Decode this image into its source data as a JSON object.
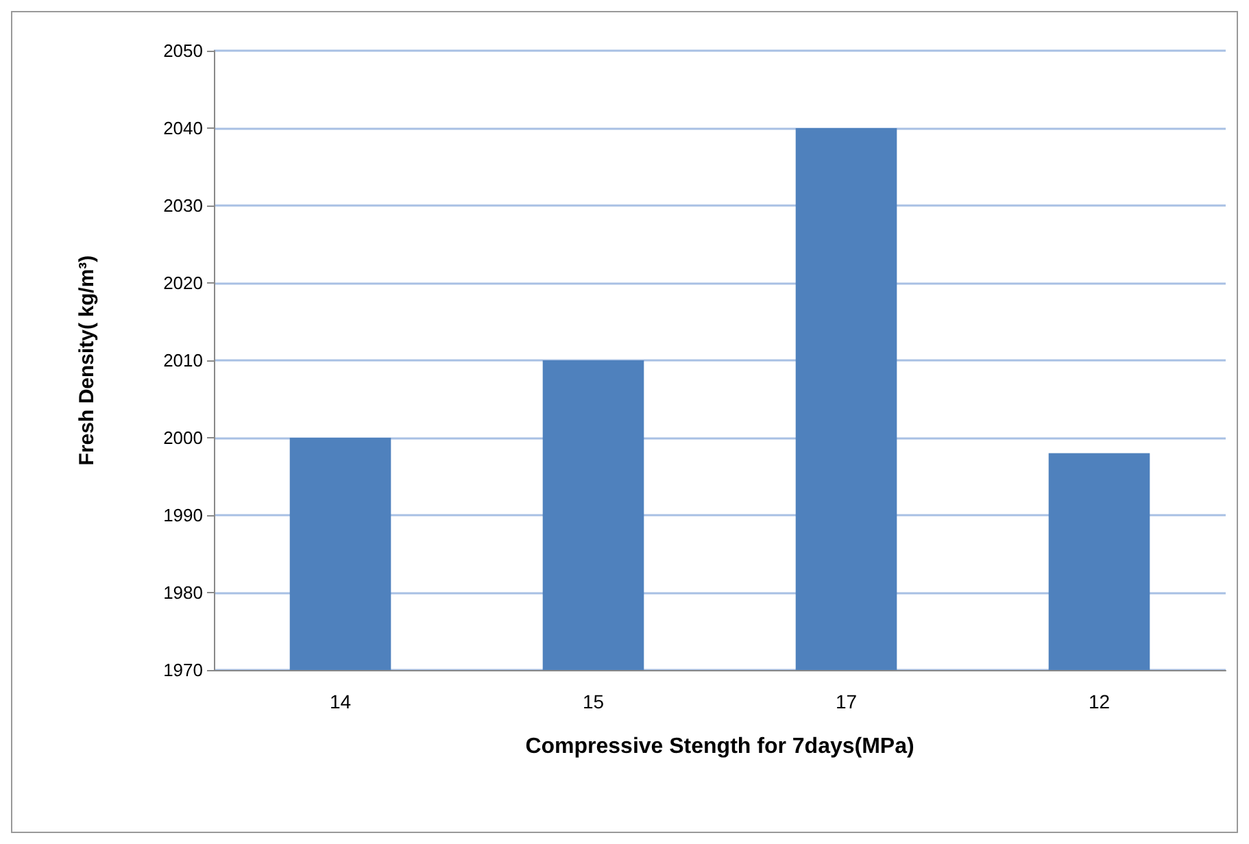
{
  "chart_data": {
    "type": "bar",
    "xlabel": "Compressive Stength for 7days(MPa)",
    "ylabel": "Fresh Density( kg/m³)",
    "categories": [
      "14",
      "15",
      "17",
      "12"
    ],
    "values": [
      2000,
      2010,
      2040,
      1998
    ],
    "color": "#4f81bd",
    "ylim": [
      1970,
      2050
    ],
    "yticks": [
      1970,
      1980,
      1990,
      2000,
      2010,
      2020,
      2030,
      2040,
      2050
    ],
    "grid": "y"
  }
}
